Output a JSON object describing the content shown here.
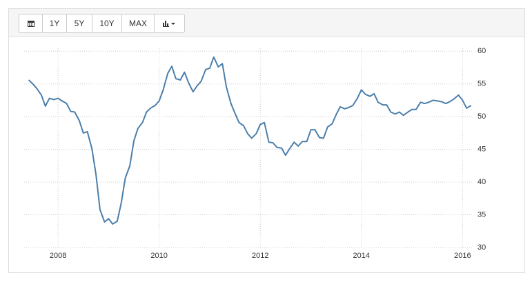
{
  "toolbar": {
    "buttons": [
      "1Y",
      "5Y",
      "10Y",
      "MAX"
    ]
  },
  "chart_data": {
    "type": "line",
    "x": [
      2007.42,
      2007.5,
      2007.58,
      2007.67,
      2007.75,
      2007.83,
      2007.92,
      2008,
      2008.08,
      2008.17,
      2008.25,
      2008.33,
      2008.42,
      2008.5,
      2008.58,
      2008.67,
      2008.75,
      2008.83,
      2008.92,
      2009,
      2009.08,
      2009.17,
      2009.25,
      2009.33,
      2009.42,
      2009.5,
      2009.58,
      2009.67,
      2009.75,
      2009.83,
      2009.92,
      2010,
      2010.08,
      2010.17,
      2010.25,
      2010.33,
      2010.42,
      2010.5,
      2010.58,
      2010.67,
      2010.75,
      2010.83,
      2010.92,
      2011,
      2011.08,
      2011.17,
      2011.25,
      2011.33,
      2011.42,
      2011.5,
      2011.58,
      2011.67,
      2011.75,
      2011.83,
      2011.92,
      2012,
      2012.08,
      2012.17,
      2012.25,
      2012.33,
      2012.42,
      2012.5,
      2012.58,
      2012.67,
      2012.75,
      2012.83,
      2012.92,
      2013,
      2013.08,
      2013.17,
      2013.25,
      2013.33,
      2013.42,
      2013.5,
      2013.58,
      2013.67,
      2013.75,
      2013.83,
      2013.92,
      2014,
      2014.08,
      2014.17,
      2014.25,
      2014.33,
      2014.42,
      2014.5,
      2014.58,
      2014.67,
      2014.75,
      2014.83,
      2014.92,
      2015,
      2015.08,
      2015.17,
      2015.25,
      2015.33,
      2015.42,
      2015.5,
      2015.58,
      2015.67,
      2015.75,
      2015.83,
      2015.92,
      2016,
      2016.08,
      2016.17
    ],
    "series": [
      {
        "color": "#4a7eab",
        "values": [
          55.6,
          55.0,
          54.3,
          53.3,
          51.6,
          52.8,
          52.6,
          52.8,
          52.4,
          52.0,
          50.8,
          50.7,
          49.4,
          47.5,
          47.7,
          45.1,
          41.2,
          35.8,
          33.9,
          34.4,
          33.6,
          34.0,
          36.8,
          40.6,
          42.5,
          46.3,
          48.2,
          49.1,
          50.7,
          51.3,
          51.7,
          52.4,
          54.1,
          56.6,
          57.7,
          55.8,
          55.6,
          56.8,
          55.2,
          53.8,
          54.7,
          55.4,
          57.2,
          57.4,
          59.1,
          57.6,
          58.1,
          54.5,
          52.0,
          50.5,
          49.1,
          48.6,
          47.4,
          46.7,
          47.4,
          48.8,
          49.1,
          46.1,
          46.0,
          45.3,
          45.2,
          44.1,
          45.1,
          46.1,
          45.5,
          46.2,
          46.2,
          48.0,
          48.0,
          46.8,
          46.7,
          48.4,
          48.9,
          50.3,
          51.5,
          51.2,
          51.4,
          51.7,
          52.8,
          54.1,
          53.4,
          53.1,
          53.5,
          52.2,
          51.8,
          51.8,
          50.7,
          50.4,
          50.7,
          50.2,
          50.7,
          51.1,
          51.1,
          52.2,
          52.0,
          52.2,
          52.5,
          52.4,
          52.3,
          52.0,
          52.3,
          52.7,
          53.3,
          52.5,
          51.3,
          51.7
        ]
      }
    ],
    "xlim": [
      2007.33,
      2016.2
    ],
    "xticks": [
      2008,
      2010,
      2012,
      2014,
      2016
    ],
    "ylim": [
      30,
      61.5
    ],
    "yticks": [
      30,
      35,
      40,
      45,
      50,
      55,
      60
    ],
    "grid": true
  }
}
